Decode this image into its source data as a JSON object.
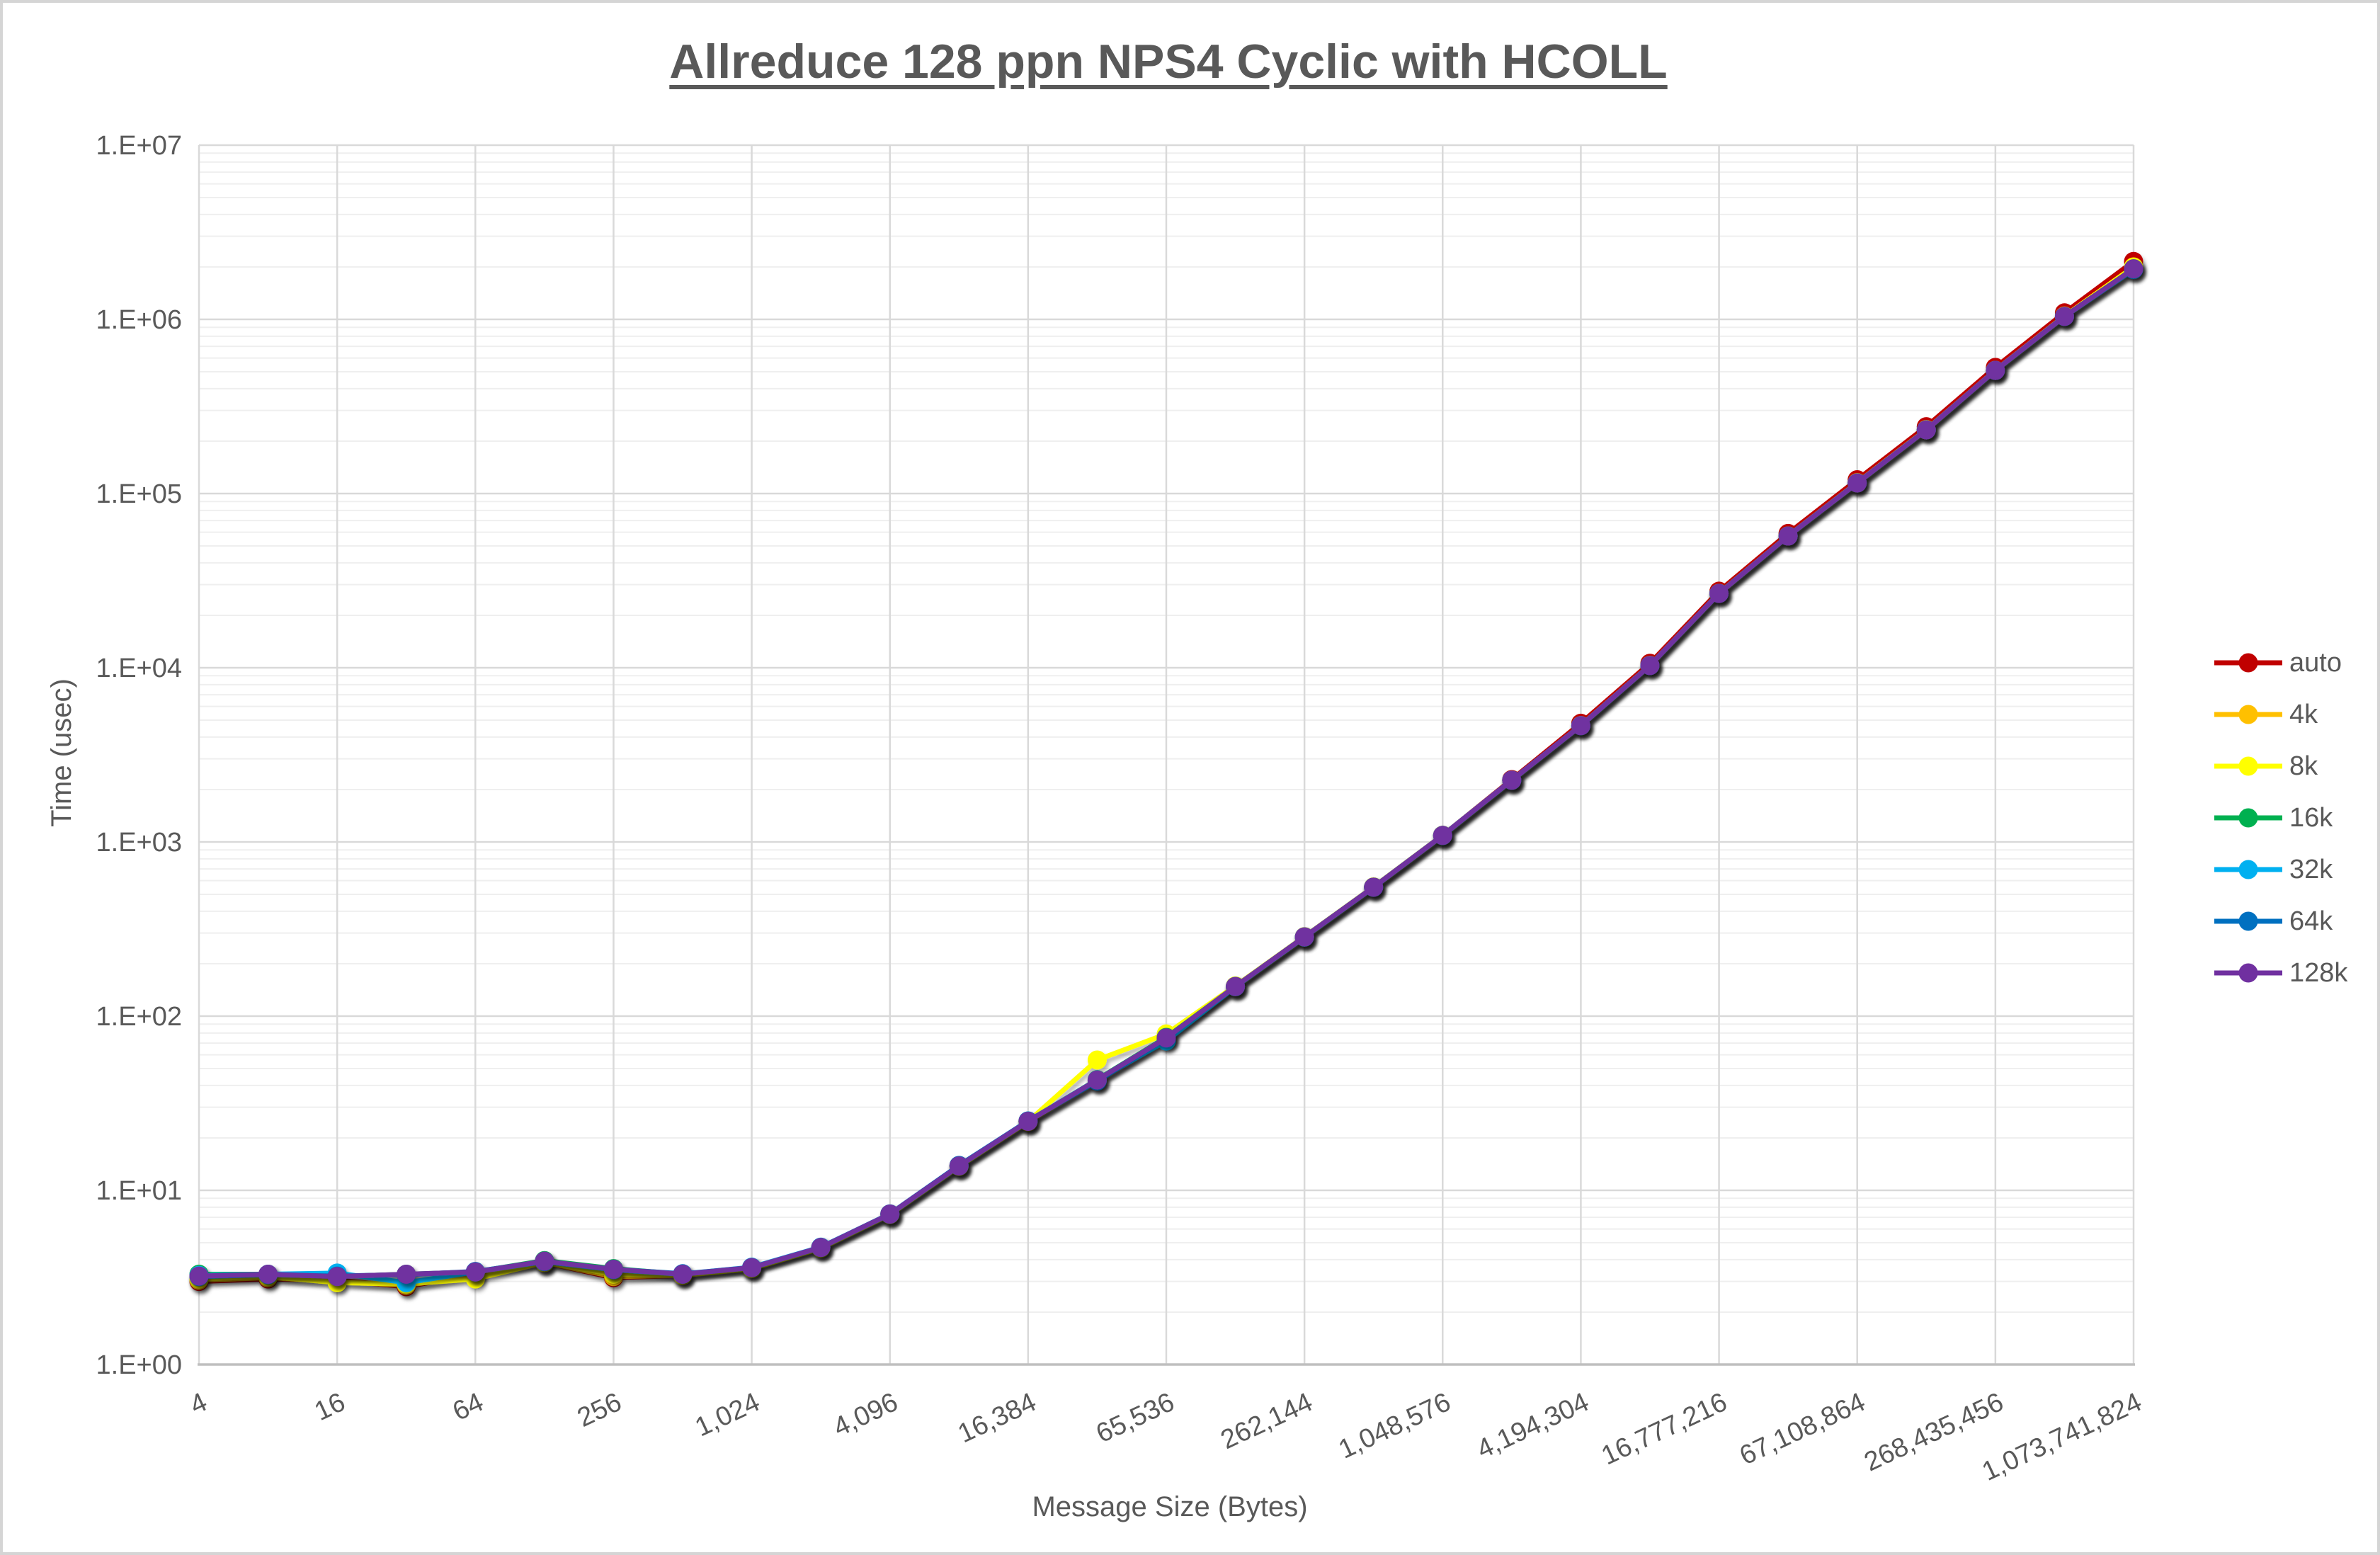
{
  "title": {
    "text": "Allreduce 128 ppn NPS4 Cyclic with HCOLL",
    "color": "#595959"
  },
  "colors": {
    "text": "#595959",
    "major_gridline": "#d9d9d9",
    "minor_gridline": "#efefef",
    "axis_line": "#bfbfbf",
    "background": "#ffffff",
    "frame": "#d5d5d5"
  },
  "chart_data": {
    "type": "line",
    "title": "Allreduce 128 ppn NPS4 Cyclic with HCOLL",
    "xlabel": "Message Size (Bytes)",
    "ylabel": "Time (usec)",
    "x_scale": "log2",
    "y_scale": "log10",
    "ylim": [
      1,
      10000000
    ],
    "grid": "major and log minor gridlines",
    "legend_position": "right",
    "y_tick_labels": [
      "1.E+00",
      "1.E+01",
      "1.E+02",
      "1.E+03",
      "1.E+04",
      "1.E+05",
      "1.E+06",
      "1.E+07"
    ],
    "x_tick_labels": [
      "4",
      "16",
      "64",
      "256",
      "1,024",
      "4,096",
      "16,384",
      "65,536",
      "262,144",
      "1,048,576",
      "4,194,304",
      "16,777,216",
      "67,108,864",
      "268,435,456",
      "1,073,741,824"
    ],
    "x": [
      4,
      8,
      16,
      32,
      64,
      128,
      256,
      512,
      1024,
      2048,
      4096,
      8192,
      16384,
      32768,
      65536,
      131072,
      262144,
      524288,
      1048576,
      2097152,
      4194304,
      8388608,
      16777216,
      33554432,
      67108864,
      134217728,
      268435456,
      536870912,
      1073741824
    ],
    "series": [
      {
        "name": "auto",
        "color": "#C00000",
        "values": [
          3.0,
          3.1,
          3.05,
          2.8,
          3.3,
          3.85,
          3.15,
          3.25,
          3.6,
          4.7,
          7.3,
          13.8,
          24.9,
          42.5,
          74,
          148,
          285,
          550,
          1090,
          2280,
          4800,
          10600,
          27500,
          59000,
          120000,
          242000,
          530000,
          1090000,
          2150000
        ]
      },
      {
        "name": "4k",
        "color": "#FFC000",
        "values": [
          3.05,
          3.15,
          3.0,
          2.85,
          3.25,
          3.85,
          3.2,
          3.25,
          3.6,
          4.7,
          7.3,
          13.7,
          24.7,
          42.8,
          74.5,
          147,
          283,
          548,
          1085,
          2250,
          4640,
          10280,
          26600,
          56800,
          114500,
          231000,
          507000,
          1035000,
          1960000
        ]
      },
      {
        "name": "8k",
        "color": "#FFFF00",
        "values": [
          3.1,
          3.2,
          2.95,
          2.9,
          3.1,
          3.85,
          3.3,
          3.25,
          3.55,
          4.65,
          7.25,
          13.7,
          24.8,
          56,
          79,
          149,
          286,
          552,
          1092,
          2260,
          4660,
          10320,
          26750,
          57100,
          115500,
          233000,
          510000,
          1045000,
          2000000
        ]
      },
      {
        "name": "16k",
        "color": "#00B050",
        "values": [
          3.3,
          3.3,
          3.2,
          3.3,
          3.4,
          3.95,
          3.55,
          3.3,
          3.6,
          4.7,
          7.3,
          13.8,
          24.9,
          43.2,
          75.5,
          148,
          285,
          550,
          1090,
          2255,
          4645,
          10290,
          26700,
          57000,
          115000,
          232000,
          508000,
          1040000,
          1950000
        ]
      },
      {
        "name": "32k",
        "color": "#00B0F0",
        "values": [
          3.25,
          3.3,
          3.35,
          2.95,
          3.4,
          3.9,
          3.5,
          3.3,
          3.62,
          4.72,
          7.3,
          13.8,
          25,
          43,
          72,
          147.5,
          284,
          549,
          1088,
          2258,
          4650,
          10300,
          26700,
          57000,
          115000,
          232000,
          509000,
          1040000,
          1930000
        ]
      },
      {
        "name": "64k",
        "color": "#0070C0",
        "values": [
          3.2,
          3.28,
          3.22,
          3.28,
          3.42,
          3.9,
          3.52,
          3.32,
          3.6,
          4.7,
          7.32,
          13.9,
          25,
          42.4,
          74.5,
          148,
          285,
          550,
          1090,
          2260,
          4650,
          10300,
          26700,
          57000,
          115000,
          232000,
          509000,
          1038000,
          1940000
        ]
      },
      {
        "name": "128k",
        "color": "#7030A0",
        "values": [
          3.22,
          3.3,
          3.2,
          3.3,
          3.4,
          3.92,
          3.52,
          3.3,
          3.6,
          4.7,
          7.3,
          13.8,
          24.9,
          43,
          75,
          148,
          285,
          550,
          1090,
          2260,
          4650,
          10300,
          26700,
          57000,
          115000,
          232000,
          509000,
          1040000,
          1950000
        ]
      }
    ]
  }
}
